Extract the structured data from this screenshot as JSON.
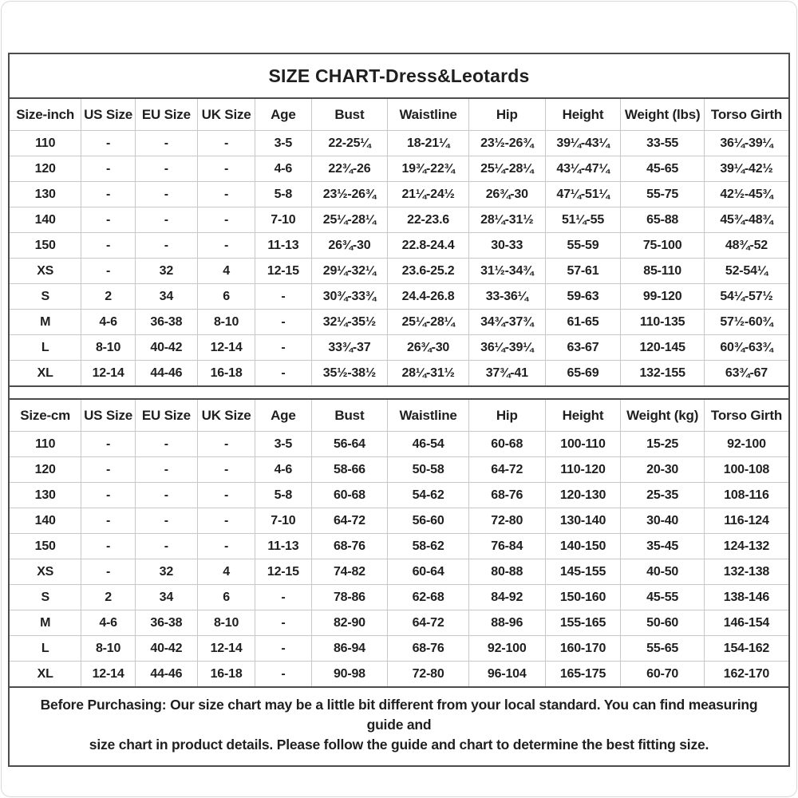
{
  "page": {
    "title": "SIZE CHART-Dress&Leotards"
  },
  "tables": [
    {
      "name": "size-table-inch",
      "headers": [
        "Size-inch",
        "US Size",
        "EU Size",
        "UK Size",
        "Age",
        "Bust",
        "Waistline",
        "Hip",
        "Height",
        "Weight (lbs)",
        "Torso Girth"
      ],
      "rows": [
        [
          "110",
          "-",
          "-",
          "-",
          "3-5",
          "22-25¼",
          "18-21¼",
          "23½-26¾",
          "39¼-43¼",
          "33-55",
          "36¼-39¼"
        ],
        [
          "120",
          "-",
          "-",
          "-",
          "4-6",
          "22¾-26",
          "19¾-22¾",
          "25¼-28¼",
          "43¼-47¼",
          "45-65",
          "39¼-42½"
        ],
        [
          "130",
          "-",
          "-",
          "-",
          "5-8",
          "23½-26¾",
          "21¼-24½",
          "26¾-30",
          "47¼-51¼",
          "55-75",
          "42½-45¾"
        ],
        [
          "140",
          "-",
          "-",
          "-",
          "7-10",
          "25¼-28¼",
          "22-23.6",
          "28¼-31½",
          "51¼-55",
          "65-88",
          "45¾-48¾"
        ],
        [
          "150",
          "-",
          "-",
          "-",
          "11-13",
          "26¾-30",
          "22.8-24.4",
          "30-33",
          "55-59",
          "75-100",
          "48¾-52"
        ],
        [
          "XS",
          "-",
          "32",
          "4",
          "12-15",
          "29¼-32¼",
          "23.6-25.2",
          "31½-34¾",
          "57-61",
          "85-110",
          "52-54¼"
        ],
        [
          "S",
          "2",
          "34",
          "6",
          "-",
          "30¾-33¾",
          "24.4-26.8",
          "33-36¼",
          "59-63",
          "99-120",
          "54¼-57½"
        ],
        [
          "M",
          "4-6",
          "36-38",
          "8-10",
          "-",
          "32¼-35½",
          "25¼-28¼",
          "34¾-37¾",
          "61-65",
          "110-135",
          "57½-60¾"
        ],
        [
          "L",
          "8-10",
          "40-42",
          "12-14",
          "-",
          "33¾-37",
          "26¾-30",
          "36¼-39¼",
          "63-67",
          "120-145",
          "60¾-63¾"
        ],
        [
          "XL",
          "12-14",
          "44-46",
          "16-18",
          "-",
          "35½-38½",
          "28¼-31½",
          "37¾-41",
          "65-69",
          "132-155",
          "63¾-67"
        ]
      ]
    },
    {
      "name": "size-table-cm",
      "headers": [
        "Size-cm",
        "US Size",
        "EU Size",
        "UK Size",
        "Age",
        "Bust",
        "Waistline",
        "Hip",
        "Height",
        "Weight (kg)",
        "Torso Girth"
      ],
      "rows": [
        [
          "110",
          "-",
          "-",
          "-",
          "3-5",
          "56-64",
          "46-54",
          "60-68",
          "100-110",
          "15-25",
          "92-100"
        ],
        [
          "120",
          "-",
          "-",
          "-",
          "4-6",
          "58-66",
          "50-58",
          "64-72",
          "110-120",
          "20-30",
          "100-108"
        ],
        [
          "130",
          "-",
          "-",
          "-",
          "5-8",
          "60-68",
          "54-62",
          "68-76",
          "120-130",
          "25-35",
          "108-116"
        ],
        [
          "140",
          "-",
          "-",
          "-",
          "7-10",
          "64-72",
          "56-60",
          "72-80",
          "130-140",
          "30-40",
          "116-124"
        ],
        [
          "150",
          "-",
          "-",
          "-",
          "11-13",
          "68-76",
          "58-62",
          "76-84",
          "140-150",
          "35-45",
          "124-132"
        ],
        [
          "XS",
          "-",
          "32",
          "4",
          "12-15",
          "74-82",
          "60-64",
          "80-88",
          "145-155",
          "40-50",
          "132-138"
        ],
        [
          "S",
          "2",
          "34",
          "6",
          "-",
          "78-86",
          "62-68",
          "84-92",
          "150-160",
          "45-55",
          "138-146"
        ],
        [
          "M",
          "4-6",
          "36-38",
          "8-10",
          "-",
          "82-90",
          "64-72",
          "88-96",
          "155-165",
          "50-60",
          "146-154"
        ],
        [
          "L",
          "8-10",
          "40-42",
          "12-14",
          "-",
          "86-94",
          "68-76",
          "92-100",
          "160-170",
          "55-65",
          "154-162"
        ],
        [
          "XL",
          "12-14",
          "44-46",
          "16-18",
          "-",
          "90-98",
          "72-80",
          "96-104",
          "165-175",
          "60-70",
          "162-170"
        ]
      ]
    }
  ],
  "note": {
    "line1": "Before Purchasing: Our size chart may be a little bit different from your local standard. You can find measuring guide and",
    "line2": "size chart in product details. Please follow the guide and chart to determine the best fitting size."
  },
  "colors": {
    "text": "#1f1f1f",
    "frame_border": "#4c4c4c",
    "cell_border": "#c8c8c8",
    "background": "#ffffff"
  }
}
